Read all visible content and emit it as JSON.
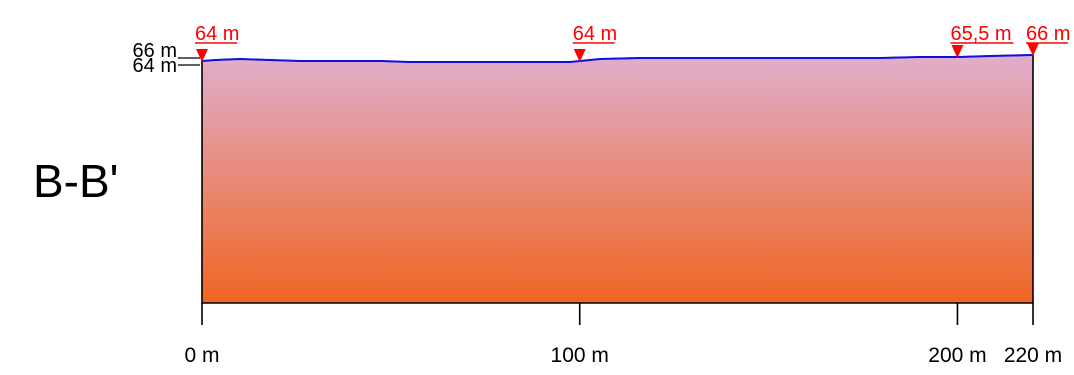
{
  "section": {
    "label": "B-B'"
  },
  "elevation_axis": {
    "ticks": [
      {
        "value": 66,
        "label": "66 m"
      },
      {
        "value": 64,
        "label": "64 m"
      }
    ]
  },
  "distance_axis": {
    "range_m": [
      0,
      220
    ],
    "ticks": [
      {
        "value": 0,
        "label": "0 m"
      },
      {
        "value": 100,
        "label": "100 m"
      },
      {
        "value": 200,
        "label": "200 m"
      },
      {
        "value": 220,
        "label": "220 m"
      }
    ]
  },
  "markers": [
    {
      "distance": 0,
      "label": "64 m"
    },
    {
      "distance": 100,
      "label": "64 m"
    },
    {
      "distance": 200,
      "label": "65,5 m"
    },
    {
      "distance": 220,
      "label": "66 m"
    }
  ],
  "colors": {
    "surface_line": "#1010e0",
    "marker": "#ff0000",
    "body_top": "#e0aecd",
    "body_bottom": "#f06522",
    "frame": "#000000"
  }
}
